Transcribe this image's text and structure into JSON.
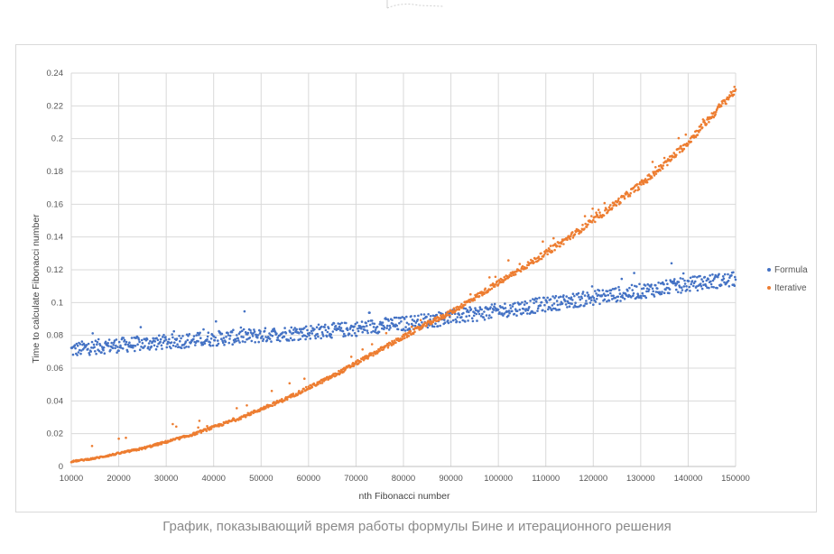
{
  "chart_data": {
    "type": "scatter",
    "xlabel": "nth Fibonacci number",
    "ylabel": "Time to calculate Fibonacci number",
    "xlim": [
      10000,
      150000
    ],
    "ylim": [
      0,
      0.24
    ],
    "x_ticks": [
      "10000",
      "20000",
      "30000",
      "40000",
      "50000",
      "60000",
      "70000",
      "80000",
      "90000",
      "100000",
      "110000",
      "120000",
      "130000",
      "140000",
      "150000"
    ],
    "y_ticks": [
      "0",
      "0.02",
      "0.04",
      "0.06",
      "0.08",
      "0.1",
      "0.12",
      "0.14",
      "0.16",
      "0.18",
      "0.2",
      "0.22",
      "0.24"
    ],
    "grid": "vertical and horizontal major gridlines",
    "legend_position": "right",
    "series": [
      {
        "name": "Formula",
        "color": "#4472c4",
        "x": [
          10000,
          15000,
          20000,
          25000,
          30000,
          35000,
          40000,
          45000,
          50000,
          55000,
          60000,
          65000,
          70000,
          75000,
          80000,
          85000,
          90000,
          95000,
          100000,
          105000,
          110000,
          115000,
          120000,
          125000,
          130000,
          135000,
          140000,
          145000,
          150000
        ],
        "y": [
          0.071,
          0.073,
          0.074,
          0.075,
          0.076,
          0.077,
          0.078,
          0.079,
          0.08,
          0.081,
          0.082,
          0.083,
          0.084,
          0.086,
          0.087,
          0.089,
          0.091,
          0.093,
          0.095,
          0.097,
          0.099,
          0.101,
          0.103,
          0.105,
          0.107,
          0.109,
          0.111,
          0.113,
          0.114
        ]
      },
      {
        "name": "Iterative",
        "color": "#ed7d31",
        "x": [
          10000,
          15000,
          20000,
          25000,
          30000,
          35000,
          40000,
          45000,
          50000,
          55000,
          60000,
          65000,
          70000,
          75000,
          80000,
          85000,
          90000,
          95000,
          100000,
          105000,
          110000,
          115000,
          120000,
          125000,
          130000,
          135000,
          140000,
          145000,
          150000
        ],
        "y": [
          0.003,
          0.005,
          0.008,
          0.011,
          0.015,
          0.019,
          0.024,
          0.029,
          0.035,
          0.041,
          0.048,
          0.055,
          0.063,
          0.071,
          0.079,
          0.087,
          0.094,
          0.103,
          0.112,
          0.121,
          0.13,
          0.14,
          0.15,
          0.161,
          0.172,
          0.184,
          0.198,
          0.214,
          0.23
        ]
      }
    ]
  },
  "caption": "График, показывающий время работы формулы Бине и итерационного решения"
}
